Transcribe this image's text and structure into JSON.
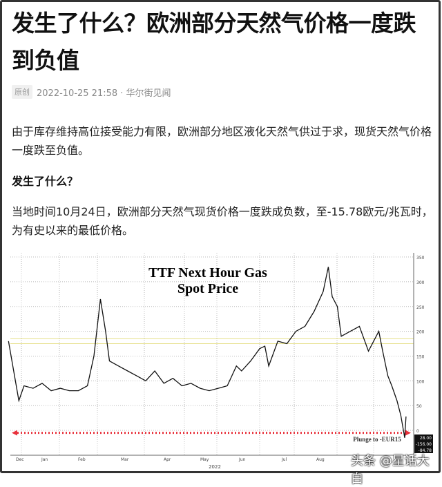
{
  "article": {
    "title": "发生了什么？欧洲部分天然气价格一度跌到负值",
    "badge": "原创",
    "meta": "2022-10-25 21:58 · 华尔街见闻",
    "para1": "由于库存维持高位接受能力有限，欧洲部分地区液化天然气供过于求，现货天然气价格一度跌至负值。",
    "heading": "发生了什么？",
    "para2": "当地时间10月24日，欧洲部分天然气现货价格一度跌成负数，至-15.78欧元/兆瓦时，为有史以来的最低价格。",
    "watermark": "头条 @星话大白"
  },
  "chart_data": {
    "type": "line",
    "title": "TTF Next Hour Gas Spot Price",
    "title_lines": [
      "TTF Next Hour Gas",
      "Spot Price"
    ],
    "annotation": "Plunge to -EUR15",
    "xlabel": "2022",
    "x_tick_labels": [
      "Dec",
      "Jan",
      "Feb",
      "Mar",
      "Apr",
      "May",
      "Jun",
      "Jul",
      "Aug"
    ],
    "y_tick_labels": [
      "350",
      "300",
      "250",
      "200",
      "150",
      "100",
      "50",
      "0"
    ],
    "ylim": [
      -40,
      360
    ],
    "axis_side": "right",
    "grid": true,
    "last_value_labels": [
      "28.00",
      "-156.00",
      "-84.78"
    ],
    "colors": {
      "line": "#111111",
      "arrow": "#e8323c",
      "band": "#e6e08a"
    },
    "series": [
      {
        "x": [
          "2021-12-22",
          "2021-12-26",
          "2021-12-30",
          "2022-01-03",
          "2022-01-10",
          "2022-01-17",
          "2022-01-24",
          "2022-01-31",
          "2022-02-07",
          "2022-02-14",
          "2022-02-21",
          "2022-02-26",
          "2022-03-03",
          "2022-03-07",
          "2022-03-10",
          "2022-03-17",
          "2022-03-24",
          "2022-03-31",
          "2022-04-07",
          "2022-04-14",
          "2022-04-21",
          "2022-04-28",
          "2022-05-05",
          "2022-05-12",
          "2022-05-19",
          "2022-05-26",
          "2022-06-02",
          "2022-06-09",
          "2022-06-16",
          "2022-06-20",
          "2022-06-27",
          "2022-07-04",
          "2022-07-08",
          "2022-07-11",
          "2022-07-18",
          "2022-07-25",
          "2022-08-01",
          "2022-08-08",
          "2022-08-15",
          "2022-08-22",
          "2022-08-26",
          "2022-08-29",
          "2022-09-02",
          "2022-09-05",
          "2022-09-12",
          "2022-09-19",
          "2022-09-26",
          "2022-09-30",
          "2022-10-04",
          "2022-10-07",
          "2022-10-11",
          "2022-10-14",
          "2022-10-18",
          "2022-10-21",
          "2022-10-24",
          "2022-10-25"
        ],
        "y": [
          180,
          120,
          60,
          90,
          85,
          95,
          80,
          85,
          80,
          80,
          90,
          150,
          265,
          200,
          140,
          130,
          120,
          110,
          100,
          120,
          95,
          105,
          90,
          95,
          85,
          80,
          85,
          90,
          130,
          120,
          140,
          165,
          170,
          130,
          180,
          175,
          200,
          210,
          240,
          280,
          330,
          270,
          250,
          190,
          200,
          210,
          160,
          180,
          200,
          160,
          110,
          90,
          60,
          30,
          -15,
          28
        ]
      }
    ]
  }
}
